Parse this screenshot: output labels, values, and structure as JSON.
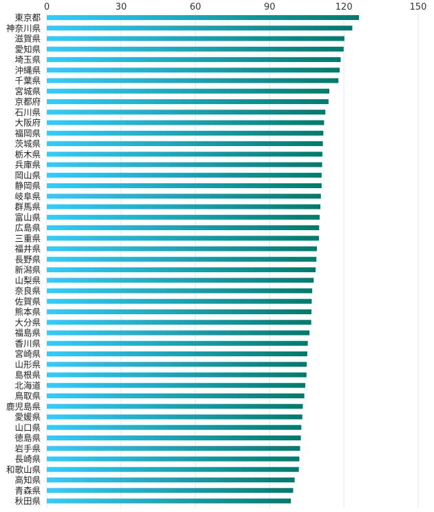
{
  "chart_data": {
    "type": "bar",
    "orientation": "horizontal",
    "title": "",
    "xlabel": "",
    "ylabel": "",
    "xlim": [
      0,
      150
    ],
    "ticks": [
      0,
      30,
      60,
      90,
      120,
      150
    ],
    "tick_labels": [
      "0",
      "30",
      "60",
      "90",
      "120",
      "150"
    ],
    "grid": true,
    "categories": [
      "東京都",
      "神奈川県",
      "滋賀県",
      "愛知県",
      "埼玉県",
      "沖縄県",
      "千葉県",
      "宮城県",
      "京都府",
      "石川県",
      "大阪府",
      "福岡県",
      "茨城県",
      "栃木県",
      "兵庫県",
      "岡山県",
      "静岡県",
      "岐阜県",
      "群馬県",
      "富山県",
      "広島県",
      "三重県",
      "福井県",
      "長野県",
      "新潟県",
      "山梨県",
      "奈良県",
      "佐賀県",
      "熊本県",
      "大分県",
      "福島県",
      "香川県",
      "宮崎県",
      "山形県",
      "島根県",
      "北海道",
      "鳥取県",
      "鹿児島県",
      "愛媛県",
      "山口県",
      "徳島県",
      "岩手県",
      "長崎県",
      "和歌山県",
      "高知県",
      "青森県",
      "秋田県"
    ],
    "values": [
      126.1,
      123.4,
      120.2,
      119.9,
      118.7,
      118.3,
      117.8,
      114.1,
      113.8,
      112.5,
      112.0,
      111.7,
      111.5,
      111.3,
      111.2,
      111.0,
      111.0,
      110.7,
      110.5,
      110.2,
      110.0,
      109.9,
      109.1,
      108.9,
      108.6,
      107.8,
      107.2,
      107.0,
      106.9,
      106.8,
      106.1,
      105.4,
      105.2,
      105.0,
      104.9,
      104.4,
      104.0,
      103.4,
      103.2,
      102.8,
      102.6,
      102.3,
      102.0,
      101.8,
      100.1,
      99.5,
      98.6
    ],
    "colors": {
      "bar_start": "#33ccff",
      "bar_end": "#007a6b",
      "grid": "#e6e6e6",
      "text": "#222222"
    }
  }
}
